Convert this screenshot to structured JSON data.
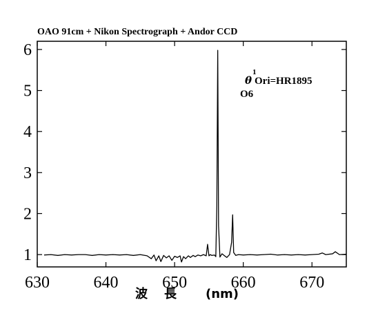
{
  "chart_data": {
    "type": "line",
    "title": "OAO 91cm + Nikon Spectrograph + Andor CCD",
    "xlabel_parts": [
      "波",
      "長",
      "(nm)"
    ],
    "ylabel": "",
    "xlim": [
      630,
      675
    ],
    "ylim": [
      0.7,
      6.2
    ],
    "xticks": [
      630,
      640,
      650,
      660,
      670
    ],
    "yticks": [
      1,
      2,
      3,
      4,
      5,
      6
    ],
    "grid": false,
    "annotation": {
      "superscript": "1",
      "greek": "θ",
      "star": "Ori=HR1895",
      "spectral_type": "O6"
    },
    "series": [
      {
        "line_color": "#000000",
        "x": [
          631.0,
          632.0,
          633.0,
          634.0,
          635.0,
          636.0,
          637.0,
          638.0,
          639.0,
          640.0,
          641.0,
          642.0,
          643.0,
          644.0,
          645.0,
          646.0,
          646.6,
          647.0,
          647.3,
          647.7,
          648.0,
          648.4,
          648.8,
          649.2,
          649.6,
          650.0,
          650.4,
          650.8,
          651.0,
          651.3,
          651.6,
          652.0,
          652.3,
          652.7,
          653.0,
          653.4,
          653.8,
          654.2,
          654.6,
          654.8,
          655.0,
          655.2,
          655.4,
          655.8,
          656.0,
          656.15,
          656.28,
          656.4,
          656.6,
          656.9,
          657.2,
          657.6,
          658.0,
          658.3,
          658.45,
          658.6,
          658.9,
          659.3,
          660.0,
          661.0,
          662.0,
          663.0,
          664.0,
          665.0,
          666.0,
          667.0,
          668.0,
          669.0,
          670.0,
          671.0,
          671.5,
          672.0,
          673.0,
          673.4,
          674.0,
          675.0
        ],
        "y": [
          0.99,
          1.0,
          0.98,
          1.0,
          0.99,
          1.0,
          1.0,
          0.98,
          1.0,
          0.99,
          1.0,
          0.99,
          1.0,
          0.98,
          1.0,
          0.97,
          0.9,
          0.99,
          0.85,
          0.97,
          0.83,
          0.98,
          0.92,
          0.97,
          0.86,
          0.96,
          0.93,
          0.97,
          0.82,
          0.95,
          0.9,
          0.97,
          0.93,
          0.98,
          0.95,
          0.99,
          0.97,
          1.0,
          0.97,
          1.25,
          0.97,
          1.0,
          0.98,
          0.99,
          0.95,
          2.2,
          5.98,
          1.7,
          0.94,
          1.02,
          0.98,
          0.93,
          1.0,
          1.3,
          1.97,
          1.05,
          0.98,
          1.0,
          0.99,
          1.0,
          0.99,
          1.0,
          1.01,
          0.99,
          1.0,
          0.99,
          1.0,
          0.99,
          1.0,
          1.01,
          1.04,
          1.0,
          1.02,
          1.07,
          1.0,
          1.01
        ]
      }
    ]
  }
}
